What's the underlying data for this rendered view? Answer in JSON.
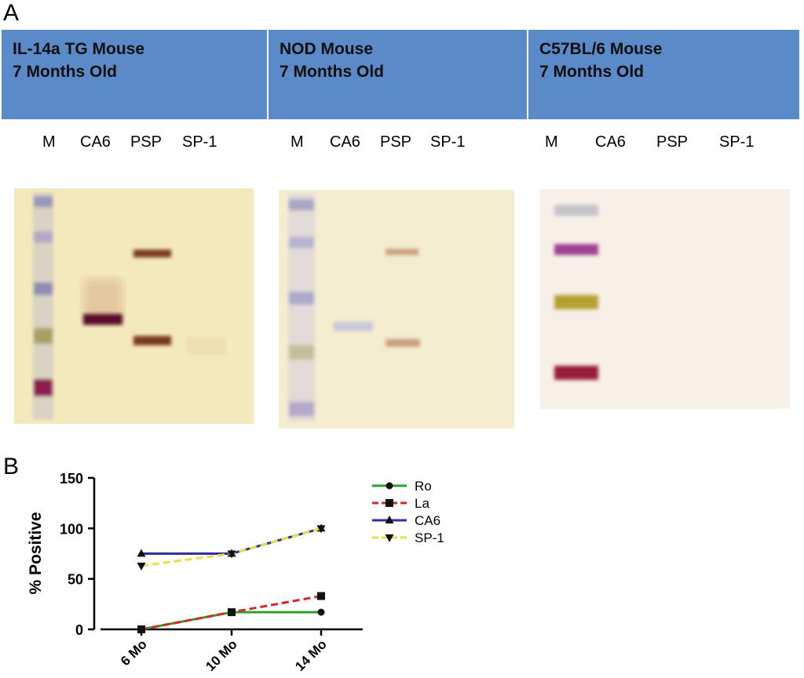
{
  "panel_a": {
    "letter": "A",
    "headers": [
      {
        "line1": "IL-14a TG Mouse",
        "line2": "7 Months Old"
      },
      {
        "line1": "NOD Mouse",
        "line2": "7 Months Old"
      },
      {
        "line1": "C57BL/6 Mouse",
        "line2": "7 Months Old"
      }
    ],
    "lanes": [
      "M",
      "CA6",
      "PSP",
      "SP-1"
    ]
  },
  "panel_b": {
    "letter": "B"
  },
  "colors": {
    "header_blue": "#5b8ac8",
    "ro": "#2ca02c",
    "la": "#d62728",
    "ca6": "#3030a0",
    "sp1": "#e6e040"
  },
  "chart_data": {
    "type": "line",
    "categories": [
      "6 Mo",
      "10 Mo",
      "14 Mo"
    ],
    "ylabel": "% Positive",
    "xlabel": "",
    "ylim": [
      0,
      150
    ],
    "yticks": [
      0,
      50,
      100,
      150
    ],
    "legend_position": "right",
    "series": [
      {
        "name": "Ro",
        "marker": "circle",
        "style": "solid",
        "color": "#2ca02c",
        "values": [
          0,
          17,
          17
        ]
      },
      {
        "name": "La",
        "marker": "square",
        "style": "dashed",
        "color": "#d62728",
        "values": [
          0,
          17,
          33
        ]
      },
      {
        "name": "CA6",
        "marker": "triangle-up",
        "style": "solid",
        "color": "#3030a0",
        "values": [
          75,
          75,
          100
        ]
      },
      {
        "name": "SP-1",
        "marker": "triangle-down",
        "style": "dashed",
        "color": "#e6e040",
        "values": [
          63,
          75,
          100
        ]
      }
    ]
  }
}
